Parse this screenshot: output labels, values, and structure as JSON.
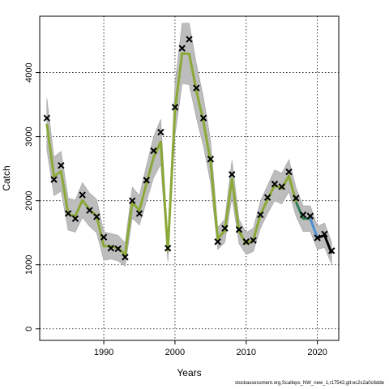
{
  "chart_data": {
    "type": "line",
    "xlabel": "Years",
    "ylabel": "Catch",
    "xlim": [
      1981,
      2023
    ],
    "ylim": [
      -180,
      4880
    ],
    "x_ticks": [
      1990,
      2000,
      2010,
      2020
    ],
    "y_ticks": [
      0,
      1000,
      2000,
      3000,
      4000
    ],
    "grid": true,
    "observed": {
      "x": [
        1982,
        1983,
        1984,
        1985,
        1986,
        1987,
        1988,
        1989,
        1990,
        1991,
        1992,
        1993,
        1994,
        1995,
        1996,
        1997,
        1998,
        1999,
        2000,
        2001,
        2002,
        2003,
        2004,
        2005,
        2006,
        2007,
        2008,
        2009,
        2010,
        2011,
        2012,
        2013,
        2014,
        2015,
        2016,
        2017,
        2018,
        2019,
        2020,
        2021,
        2022
      ],
      "y": [
        3290,
        2330,
        2550,
        1800,
        1720,
        2090,
        1850,
        1750,
        1430,
        1260,
        1250,
        1120,
        2000,
        1800,
        2320,
        2780,
        3070,
        1260,
        3460,
        4380,
        4520,
        3760,
        3290,
        2650,
        1360,
        1570,
        2410,
        1550,
        1360,
        1380,
        1780,
        2050,
        2260,
        2220,
        2450,
        2040,
        1780,
        1760,
        1420,
        1480,
        1220
      ]
    },
    "fit": {
      "x": [
        1982,
        1983,
        1984,
        1985,
        1986,
        1987,
        1988,
        1989,
        1990,
        1991,
        1992,
        1993,
        1994,
        1995,
        1996,
        1997,
        1998,
        1999,
        2000,
        2001,
        2002,
        2003,
        2004,
        2005,
        2006,
        2007,
        2008,
        2009,
        2010,
        2011,
        2012,
        2013,
        2014,
        2015,
        2016,
        2017,
        2018,
        2019,
        2020,
        2021,
        2022
      ],
      "y": [
        3200,
        2380,
        2460,
        1790,
        1760,
        2010,
        1860,
        1760,
        1290,
        1290,
        1260,
        1160,
        1970,
        1850,
        2270,
        2680,
        2920,
        1220,
        3420,
        4300,
        4290,
        3720,
        3230,
        2610,
        1410,
        1530,
        2340,
        1520,
        1330,
        1390,
        1780,
        2020,
        2240,
        2190,
        2390,
        1980,
        1720,
        1720,
        1420,
        1460,
        1180
      ],
      "ci_halfwidth": [
        400,
        300,
        310,
        250,
        250,
        270,
        260,
        260,
        220,
        200,
        200,
        180,
        240,
        230,
        280,
        320,
        350,
        170,
        400,
        470,
        480,
        420,
        380,
        330,
        170,
        180,
        290,
        190,
        170,
        180,
        210,
        220,
        240,
        240,
        250,
        220,
        200,
        200,
        180,
        190,
        170
      ]
    },
    "fit_segment_colors": [
      {
        "from": 1982,
        "to": 2017,
        "color": "#8aa936"
      },
      {
        "from": 2017,
        "to": 2019,
        "color": "#2e7d52"
      },
      {
        "from": 2019,
        "to": 2020,
        "color": "#4e8fd1"
      },
      {
        "from": 2020,
        "to": 2022,
        "color": "#000000"
      }
    ],
    "band_color": "#bdbdbd"
  },
  "footer_text": "stockassessment.org,Scallops_NW_new_1,r17542,git:ec2c2a0c6dde"
}
